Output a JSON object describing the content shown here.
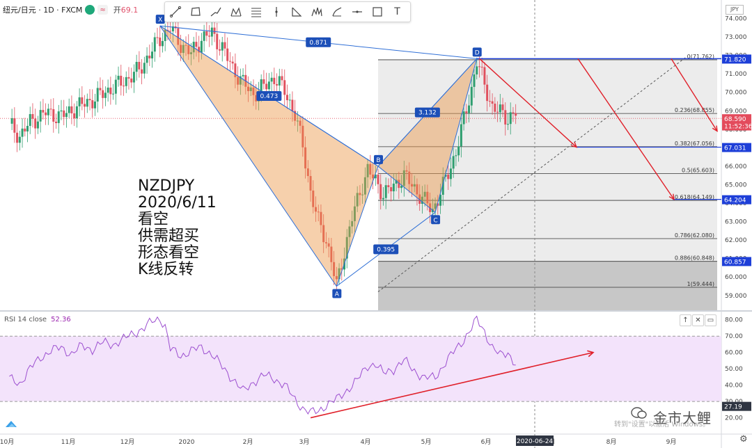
{
  "symbol": {
    "name": "纽元/日元 · 1D · FXCM",
    "open_label": "开",
    "open_value": "69.1"
  },
  "toolbar": {
    "tools": [
      "trend-line",
      "rectangle",
      "path",
      "xabcd-pattern",
      "fib-retracement",
      "vertical-line",
      "triangle",
      "head-shoulders",
      "long-position",
      "horizontal-line",
      "box-select",
      "text"
    ],
    "text_tool_label": "T"
  },
  "annotation": {
    "lines": [
      "NZDJPY",
      "2020/6/11",
      "看空",
      "供需超买",
      "形态看空",
      "K线反转"
    ]
  },
  "currency_badge": "JPY",
  "chart_data": {
    "type": "candlestick",
    "price_axis": {
      "range": [
        58.2,
        75.0
      ],
      "ticks": [
        "74.000",
        "73.000",
        "72.000",
        "71.000",
        "70.000",
        "69.000",
        "68.000",
        "67.000",
        "66.000",
        "65.000",
        "64.000",
        "63.000",
        "62.000",
        "61.000",
        "60.000",
        "59.000"
      ],
      "label_decimals": 3
    },
    "time_axis": {
      "labels": [
        "10月",
        "11月",
        "12月",
        "2020",
        "2月",
        "3月",
        "4月",
        "5月",
        "6月",
        "7月",
        "8月",
        "9月"
      ],
      "crosshair_date": "2020-06-24"
    },
    "price_path": [
      [
        0,
        68.3
      ],
      [
        4,
        67.6
      ],
      [
        8,
        68.4
      ],
      [
        14,
        68.9
      ],
      [
        20,
        68.7
      ],
      [
        26,
        69.2
      ],
      [
        32,
        69.6
      ],
      [
        38,
        70.1
      ],
      [
        44,
        70.6
      ],
      [
        50,
        71.2
      ],
      [
        55,
        72.3
      ],
      [
        58,
        72.9
      ],
      [
        62,
        73.5
      ],
      [
        66,
        72.6
      ],
      [
        70,
        72.1
      ],
      [
        74,
        72.9
      ],
      [
        78,
        73.2
      ],
      [
        82,
        72.4
      ],
      [
        86,
        71.3
      ],
      [
        90,
        70.5
      ],
      [
        94,
        69.9
      ],
      [
        98,
        70.3
      ],
      [
        102,
        70.8
      ],
      [
        106,
        70.1
      ],
      [
        110,
        68.8
      ],
      [
        113,
        67.1
      ],
      [
        116,
        64.6
      ],
      [
        119,
        63.0
      ],
      [
        122,
        62.0
      ],
      [
        124,
        60.9
      ],
      [
        126,
        59.5
      ],
      [
        129,
        61.4
      ],
      [
        132,
        63.2
      ],
      [
        135,
        64.6
      ],
      [
        138,
        65.8
      ],
      [
        141,
        65.2
      ],
      [
        144,
        64.5
      ],
      [
        148,
        64.9
      ],
      [
        152,
        65.5
      ],
      [
        156,
        64.8
      ],
      [
        160,
        64.1
      ],
      [
        163,
        63.6
      ],
      [
        166,
        64.6
      ],
      [
        169,
        65.6
      ],
      [
        172,
        66.8
      ],
      [
        175,
        68.5
      ],
      [
        178,
        70.2
      ],
      [
        180,
        71.7
      ],
      [
        183,
        70.4
      ],
      [
        186,
        69.2
      ],
      [
        189,
        68.9
      ],
      [
        192,
        68.6
      ],
      [
        195,
        68.9
      ]
    ],
    "series": [
      {
        "name": "XABCD",
        "points": [
          {
            "label": "X",
            "x": 58,
            "price": 73.6
          },
          {
            "label": "A",
            "x": 126,
            "price": 59.5
          },
          {
            "label": "B",
            "x": 142,
            "price": 66.0
          },
          {
            "label": "C",
            "x": 164,
            "price": 63.5
          },
          {
            "label": "D",
            "x": 180,
            "price": 71.82
          }
        ],
        "ratios": [
          {
            "value": "0.871",
            "between": "X-D"
          },
          {
            "value": "0.473",
            "between": "X-B"
          },
          {
            "value": "3.132",
            "between": "B-D"
          },
          {
            "value": "0.395",
            "between": "A-C"
          }
        ]
      }
    ],
    "fib_levels": [
      {
        "ratio": "0",
        "price": 71.762,
        "label": "0(71.762)"
      },
      {
        "ratio": "0.236",
        "price": 68.855,
        "label": "0.236(68.855)"
      },
      {
        "ratio": "0.382",
        "price": 67.056,
        "label": "0.382(67.056)"
      },
      {
        "ratio": "0.5",
        "price": 65.603,
        "label": "0.5(65.603)"
      },
      {
        "ratio": "0.618",
        "price": 64.149,
        "label": "0.618(64.149)"
      },
      {
        "ratio": "0.786",
        "price": 62.08,
        "label": "0.786(62.080)"
      },
      {
        "ratio": "0.886",
        "price": 60.848,
        "label": "0.886(60.848)"
      },
      {
        "ratio": "1",
        "price": 59.444,
        "label": "1(59.444)"
      }
    ],
    "price_tags": [
      {
        "text": "71.820",
        "price": 71.82,
        "color": "#1e3fd8"
      },
      {
        "text": "68.590",
        "price": 68.59,
        "color": "#e34b5c"
      },
      {
        "text": "11:52:36",
        "price": 68.2,
        "color": "#e34b5c"
      },
      {
        "text": "67.031",
        "price": 67.031,
        "color": "#1e3fd8"
      },
      {
        "text": "64.204",
        "price": 64.204,
        "color": "#1e3fd8"
      },
      {
        "text": "60.857",
        "price": 60.857,
        "color": "#1e3fd8"
      }
    ],
    "current_price": 68.59,
    "rsi": {
      "label": "RSI 14 close",
      "value": "52.36",
      "range": [
        10,
        85
      ],
      "band": [
        30,
        70
      ],
      "ticks": [
        "80.00",
        "70.00",
        "60.00",
        "50.00",
        "40.00",
        "30.00",
        "20.00"
      ],
      "last_tag": "27.19",
      "path": [
        [
          0,
          44
        ],
        [
          4,
          41
        ],
        [
          8,
          50
        ],
        [
          12,
          57
        ],
        [
          16,
          61
        ],
        [
          20,
          63
        ],
        [
          24,
          59
        ],
        [
          28,
          64
        ],
        [
          32,
          62
        ],
        [
          36,
          66
        ],
        [
          40,
          65
        ],
        [
          44,
          68
        ],
        [
          48,
          72
        ],
        [
          52,
          75
        ],
        [
          55,
          79
        ],
        [
          58,
          81
        ],
        [
          60,
          76
        ],
        [
          62,
          62
        ],
        [
          66,
          58
        ],
        [
          70,
          61
        ],
        [
          74,
          63
        ],
        [
          78,
          59
        ],
        [
          82,
          51
        ],
        [
          86,
          44
        ],
        [
          90,
          36
        ],
        [
          94,
          42
        ],
        [
          98,
          46
        ],
        [
          102,
          44
        ],
        [
          106,
          40
        ],
        [
          110,
          31
        ],
        [
          113,
          26
        ],
        [
          116,
          23
        ],
        [
          119,
          24
        ],
        [
          122,
          28
        ],
        [
          126,
          31
        ],
        [
          130,
          37
        ],
        [
          134,
          43
        ],
        [
          138,
          52
        ],
        [
          141,
          53
        ],
        [
          144,
          47
        ],
        [
          148,
          50
        ],
        [
          152,
          55
        ],
        [
          156,
          49
        ],
        [
          160,
          44
        ],
        [
          164,
          45
        ],
        [
          168,
          54
        ],
        [
          172,
          62
        ],
        [
          175,
          68
        ],
        [
          178,
          75
        ],
        [
          180,
          80
        ],
        [
          183,
          73
        ],
        [
          186,
          63
        ],
        [
          189,
          58
        ],
        [
          192,
          60
        ],
        [
          195,
          53
        ]
      ]
    }
  },
  "watermark": {
    "title": "金市大鲤",
    "sub": "转到\"设置\"以激活 Windows。"
  }
}
